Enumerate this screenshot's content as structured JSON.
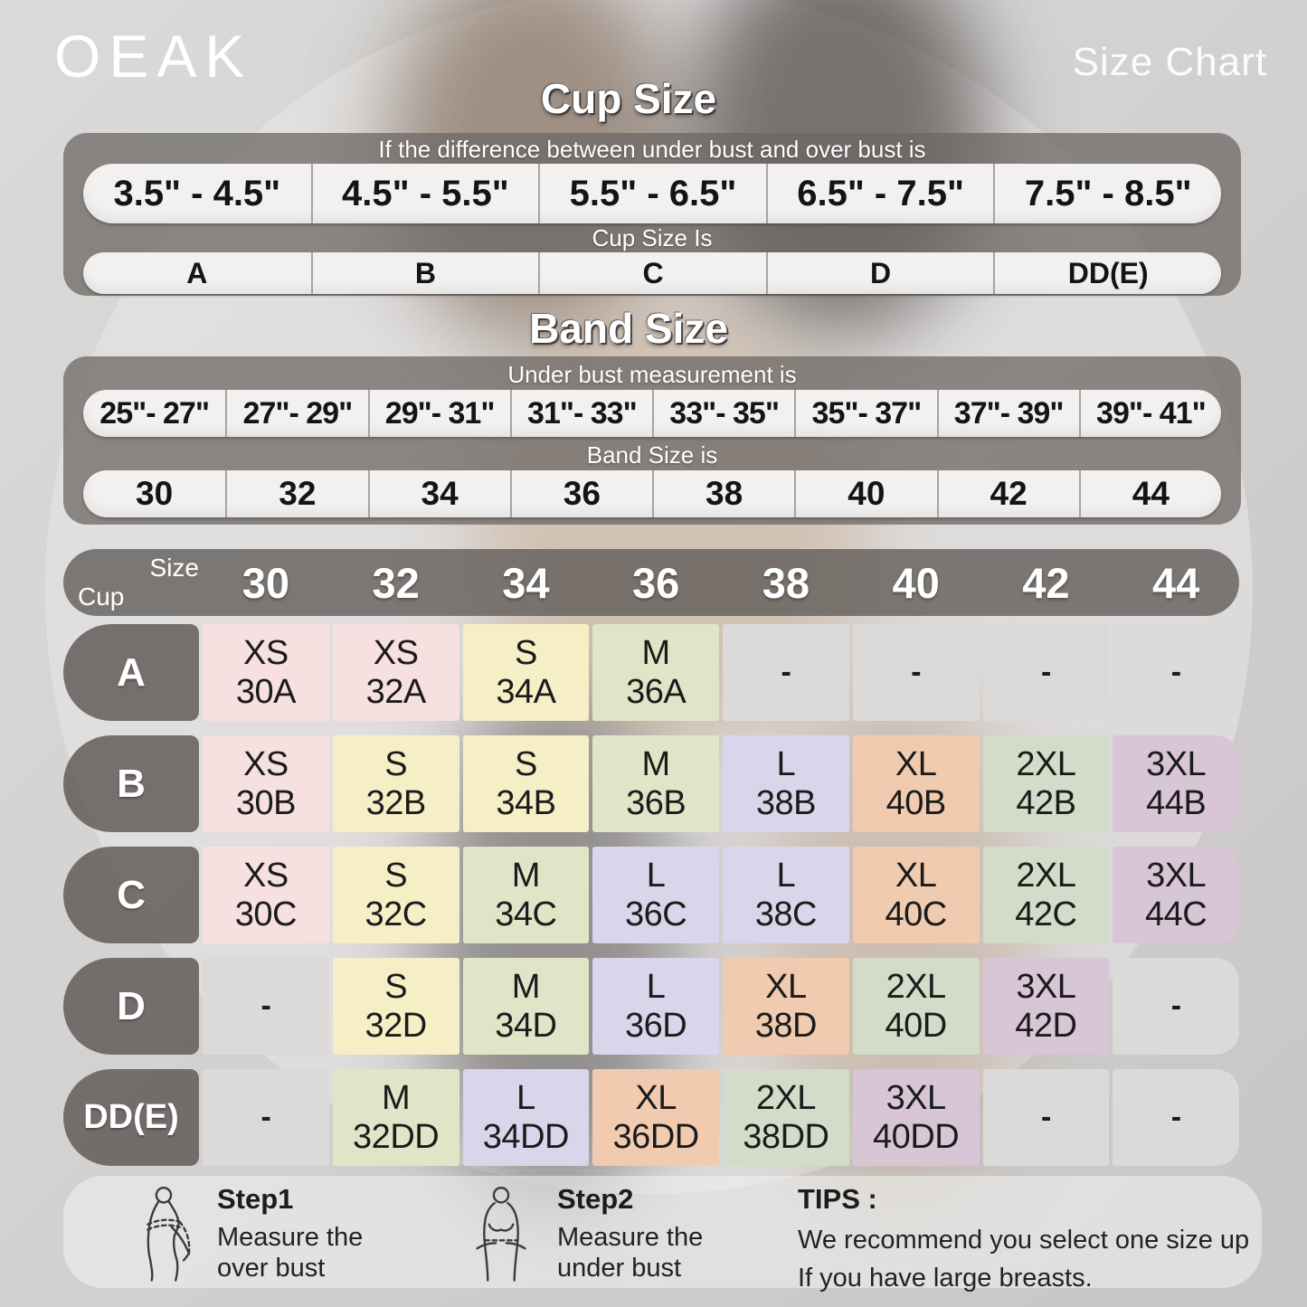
{
  "brand": "OEAK",
  "page_title": "Size Chart",
  "colors": {
    "pink": "#f7e0e0",
    "yellow": "#f6efc6",
    "green": "#dfe6c8",
    "lavender": "#d9d5ea",
    "peach": "#f0cbb0",
    "sage": "#d2dcc9",
    "mauve": "#d8c5d6",
    "gray": "#dcdad9",
    "panel_dark": "#6c6764",
    "pill_white": "#f2f1f0"
  },
  "chart_data": [
    {
      "type": "table",
      "title": "Cup Size",
      "header": "If the  difference between under bust and over bust is",
      "categories": [
        "3.5\" - 4.5\"",
        "4.5\" - 5.5\"",
        "5.5\" - 6.5\"",
        "6.5\" - 7.5\"",
        "7.5\" - 8.5\""
      ],
      "result_header": "Cup Size Is",
      "values": [
        "A",
        "B",
        "C",
        "D",
        "DD(E)"
      ]
    },
    {
      "type": "table",
      "title": "Band Size",
      "header": "Under bust measurement is",
      "categories": [
        "25\"- 27\"",
        "27\"- 29\"",
        "29\"- 31\"",
        "31\"- 33\"",
        "33\"- 35\"",
        "35\"- 37\"",
        "37\"- 39\"",
        "39\"- 41\""
      ],
      "result_header": "Band Size is",
      "values": [
        "30",
        "32",
        "34",
        "36",
        "38",
        "40",
        "42",
        "44"
      ]
    },
    {
      "type": "table",
      "title": "Size matrix (band × cup)",
      "corner_top": "Size",
      "corner_bottom": "Cup",
      "columns": [
        "30",
        "32",
        "34",
        "36",
        "38",
        "40",
        "42",
        "44"
      ],
      "rows": [
        {
          "cup": "A",
          "cells": [
            {
              "size": "XS",
              "code": "30A",
              "color": "pink"
            },
            {
              "size": "XS",
              "code": "32A",
              "color": "pink"
            },
            {
              "size": "S",
              "code": "34A",
              "color": "yellow"
            },
            {
              "size": "M",
              "code": "36A",
              "color": "green"
            },
            {
              "size": "-",
              "code": "",
              "color": "gray"
            },
            {
              "size": "-",
              "code": "",
              "color": "gray"
            },
            {
              "size": "-",
              "code": "",
              "color": "gray"
            },
            {
              "size": "-",
              "code": "",
              "color": "gray"
            }
          ]
        },
        {
          "cup": "B",
          "cells": [
            {
              "size": "XS",
              "code": "30B",
              "color": "pink"
            },
            {
              "size": "S",
              "code": "32B",
              "color": "yellow"
            },
            {
              "size": "S",
              "code": "34B",
              "color": "yellow"
            },
            {
              "size": "M",
              "code": "36B",
              "color": "green"
            },
            {
              "size": "L",
              "code": "38B",
              "color": "lavender"
            },
            {
              "size": "XL",
              "code": "40B",
              "color": "peach"
            },
            {
              "size": "2XL",
              "code": "42B",
              "color": "sage"
            },
            {
              "size": "3XL",
              "code": "44B",
              "color": "mauve"
            }
          ]
        },
        {
          "cup": "C",
          "cells": [
            {
              "size": "XS",
              "code": "30C",
              "color": "pink"
            },
            {
              "size": "S",
              "code": "32C",
              "color": "yellow"
            },
            {
              "size": "M",
              "code": "34C",
              "color": "green"
            },
            {
              "size": "L",
              "code": "36C",
              "color": "lavender"
            },
            {
              "size": "L",
              "code": "38C",
              "color": "lavender"
            },
            {
              "size": "XL",
              "code": "40C",
              "color": "peach"
            },
            {
              "size": "2XL",
              "code": "42C",
              "color": "sage"
            },
            {
              "size": "3XL",
              "code": "44C",
              "color": "mauve"
            }
          ]
        },
        {
          "cup": "D",
          "cells": [
            {
              "size": "-",
              "code": "",
              "color": "gray"
            },
            {
              "size": "S",
              "code": "32D",
              "color": "yellow"
            },
            {
              "size": "M",
              "code": "34D",
              "color": "green"
            },
            {
              "size": "L",
              "code": "36D",
              "color": "lavender"
            },
            {
              "size": "XL",
              "code": "38D",
              "color": "peach"
            },
            {
              "size": "2XL",
              "code": "40D",
              "color": "sage"
            },
            {
              "size": "3XL",
              "code": "42D",
              "color": "mauve"
            },
            {
              "size": "-",
              "code": "",
              "color": "gray"
            }
          ]
        },
        {
          "cup": "DD(E)",
          "cells": [
            {
              "size": "-",
              "code": "",
              "color": "gray"
            },
            {
              "size": "M",
              "code": "32DD",
              "color": "green"
            },
            {
              "size": "L",
              "code": "34DD",
              "color": "lavender"
            },
            {
              "size": "XL",
              "code": "36DD",
              "color": "peach"
            },
            {
              "size": "2XL",
              "code": "38DD",
              "color": "sage"
            },
            {
              "size": "3XL",
              "code": "40DD",
              "color": "mauve"
            },
            {
              "size": "-",
              "code": "",
              "color": "gray"
            },
            {
              "size": "-",
              "code": "",
              "color": "gray"
            }
          ]
        }
      ]
    }
  ],
  "footer": {
    "steps": [
      {
        "title": "Step1",
        "line1": "Measure the",
        "line2": "over bust"
      },
      {
        "title": "Step2",
        "line1": "Measure the",
        "line2": "under bust"
      }
    ],
    "tips_title": "TIPS :",
    "tips_lines": [
      "We recommend you select one size up",
      "If you have large breasts."
    ]
  }
}
